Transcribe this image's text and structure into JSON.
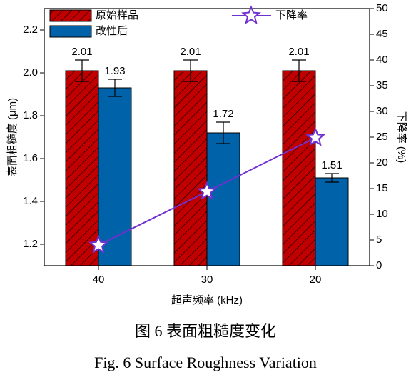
{
  "chart_data": {
    "type": "bar",
    "categories": [
      "40",
      "30",
      "20"
    ],
    "x_label": "超声频率 (kHz)",
    "y_label": "表面粗糙度 (μm)",
    "y2_label": "下降率 (%)",
    "series": [
      {
        "name": "原始样品",
        "type": "bar",
        "color": "#c00000",
        "hatch": true,
        "values": [
          2.01,
          2.01,
          2.01
        ],
        "errors": [
          0.05,
          0.05,
          0.05
        ]
      },
      {
        "name": "改性后",
        "type": "bar",
        "color": "#0063a9",
        "values": [
          1.93,
          1.72,
          1.51
        ],
        "errors": [
          0.04,
          0.05,
          0.02
        ]
      },
      {
        "name": "下降率",
        "type": "line",
        "axis": "y2",
        "color": "#7030d0",
        "values": [
          4.0,
          14.4,
          24.9
        ]
      }
    ],
    "ylim": [
      1.1,
      2.3
    ],
    "yticks": [
      1.2,
      1.4,
      1.6,
      1.8,
      {
        "value": 2,
        "label": "2.0"
      },
      2.2
    ],
    "y2lim": [
      0,
      50
    ],
    "y2ticks": [
      0,
      5,
      10,
      15,
      20,
      25,
      30,
      35,
      40,
      45,
      50
    ],
    "caption_cn": "图 6  表面粗糙度变化",
    "caption_en": "Fig. 6 Surface Roughness Variation"
  }
}
